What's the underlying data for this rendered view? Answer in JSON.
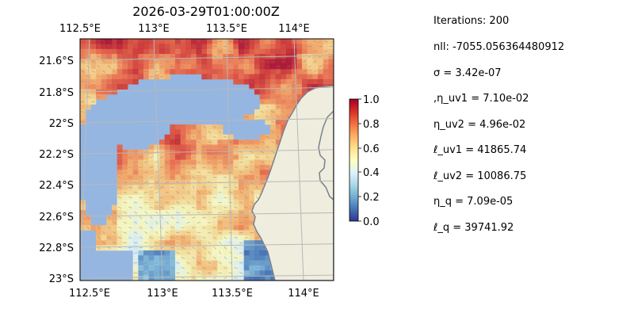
{
  "chart_data": {
    "type": "heatmap",
    "title": "2026-03-29T01:00:00Z",
    "x_axis": {
      "ticks": [
        "112.5°E",
        "113°E",
        "113.5°E",
        "114°E"
      ]
    },
    "y_axis": {
      "ticks": [
        "21.6°S",
        "21.8°S",
        "22°S",
        "22.2°S",
        "22.4°S",
        "22.6°S",
        "22.8°S",
        "23°S"
      ]
    },
    "colorbar": {
      "ticks": [
        "0.0",
        "0.2",
        "0.4",
        "0.6",
        "0.8",
        "1.0"
      ],
      "range": [
        0,
        1
      ],
      "colormap": "RdYlBu_r"
    },
    "colors": {
      "ocean": "#95b6e1",
      "land": "#efedde",
      "coast": "#7a7f8e",
      "grid": "#b8b8b8"
    },
    "overlay": "quiver arrows on data cells",
    "grid": true
  },
  "parameters": [
    {
      "text": "Iterations: 200"
    },
    {
      "text": "nll: -7055.056364480912"
    },
    {
      "text": "σ = 3.42e-07"
    },
    {
      "text": ",η_uv1 = 7.10e-02"
    },
    {
      "text": "η_uv2 = 4.96e-02"
    },
    {
      "text": "ℓ_uv1 = 41865.74"
    },
    {
      "text": "ℓ_uv2 = 10086.75"
    },
    {
      "text": "η_q = 7.09e-05"
    },
    {
      "text": "ℓ_q = 39741.92"
    }
  ]
}
